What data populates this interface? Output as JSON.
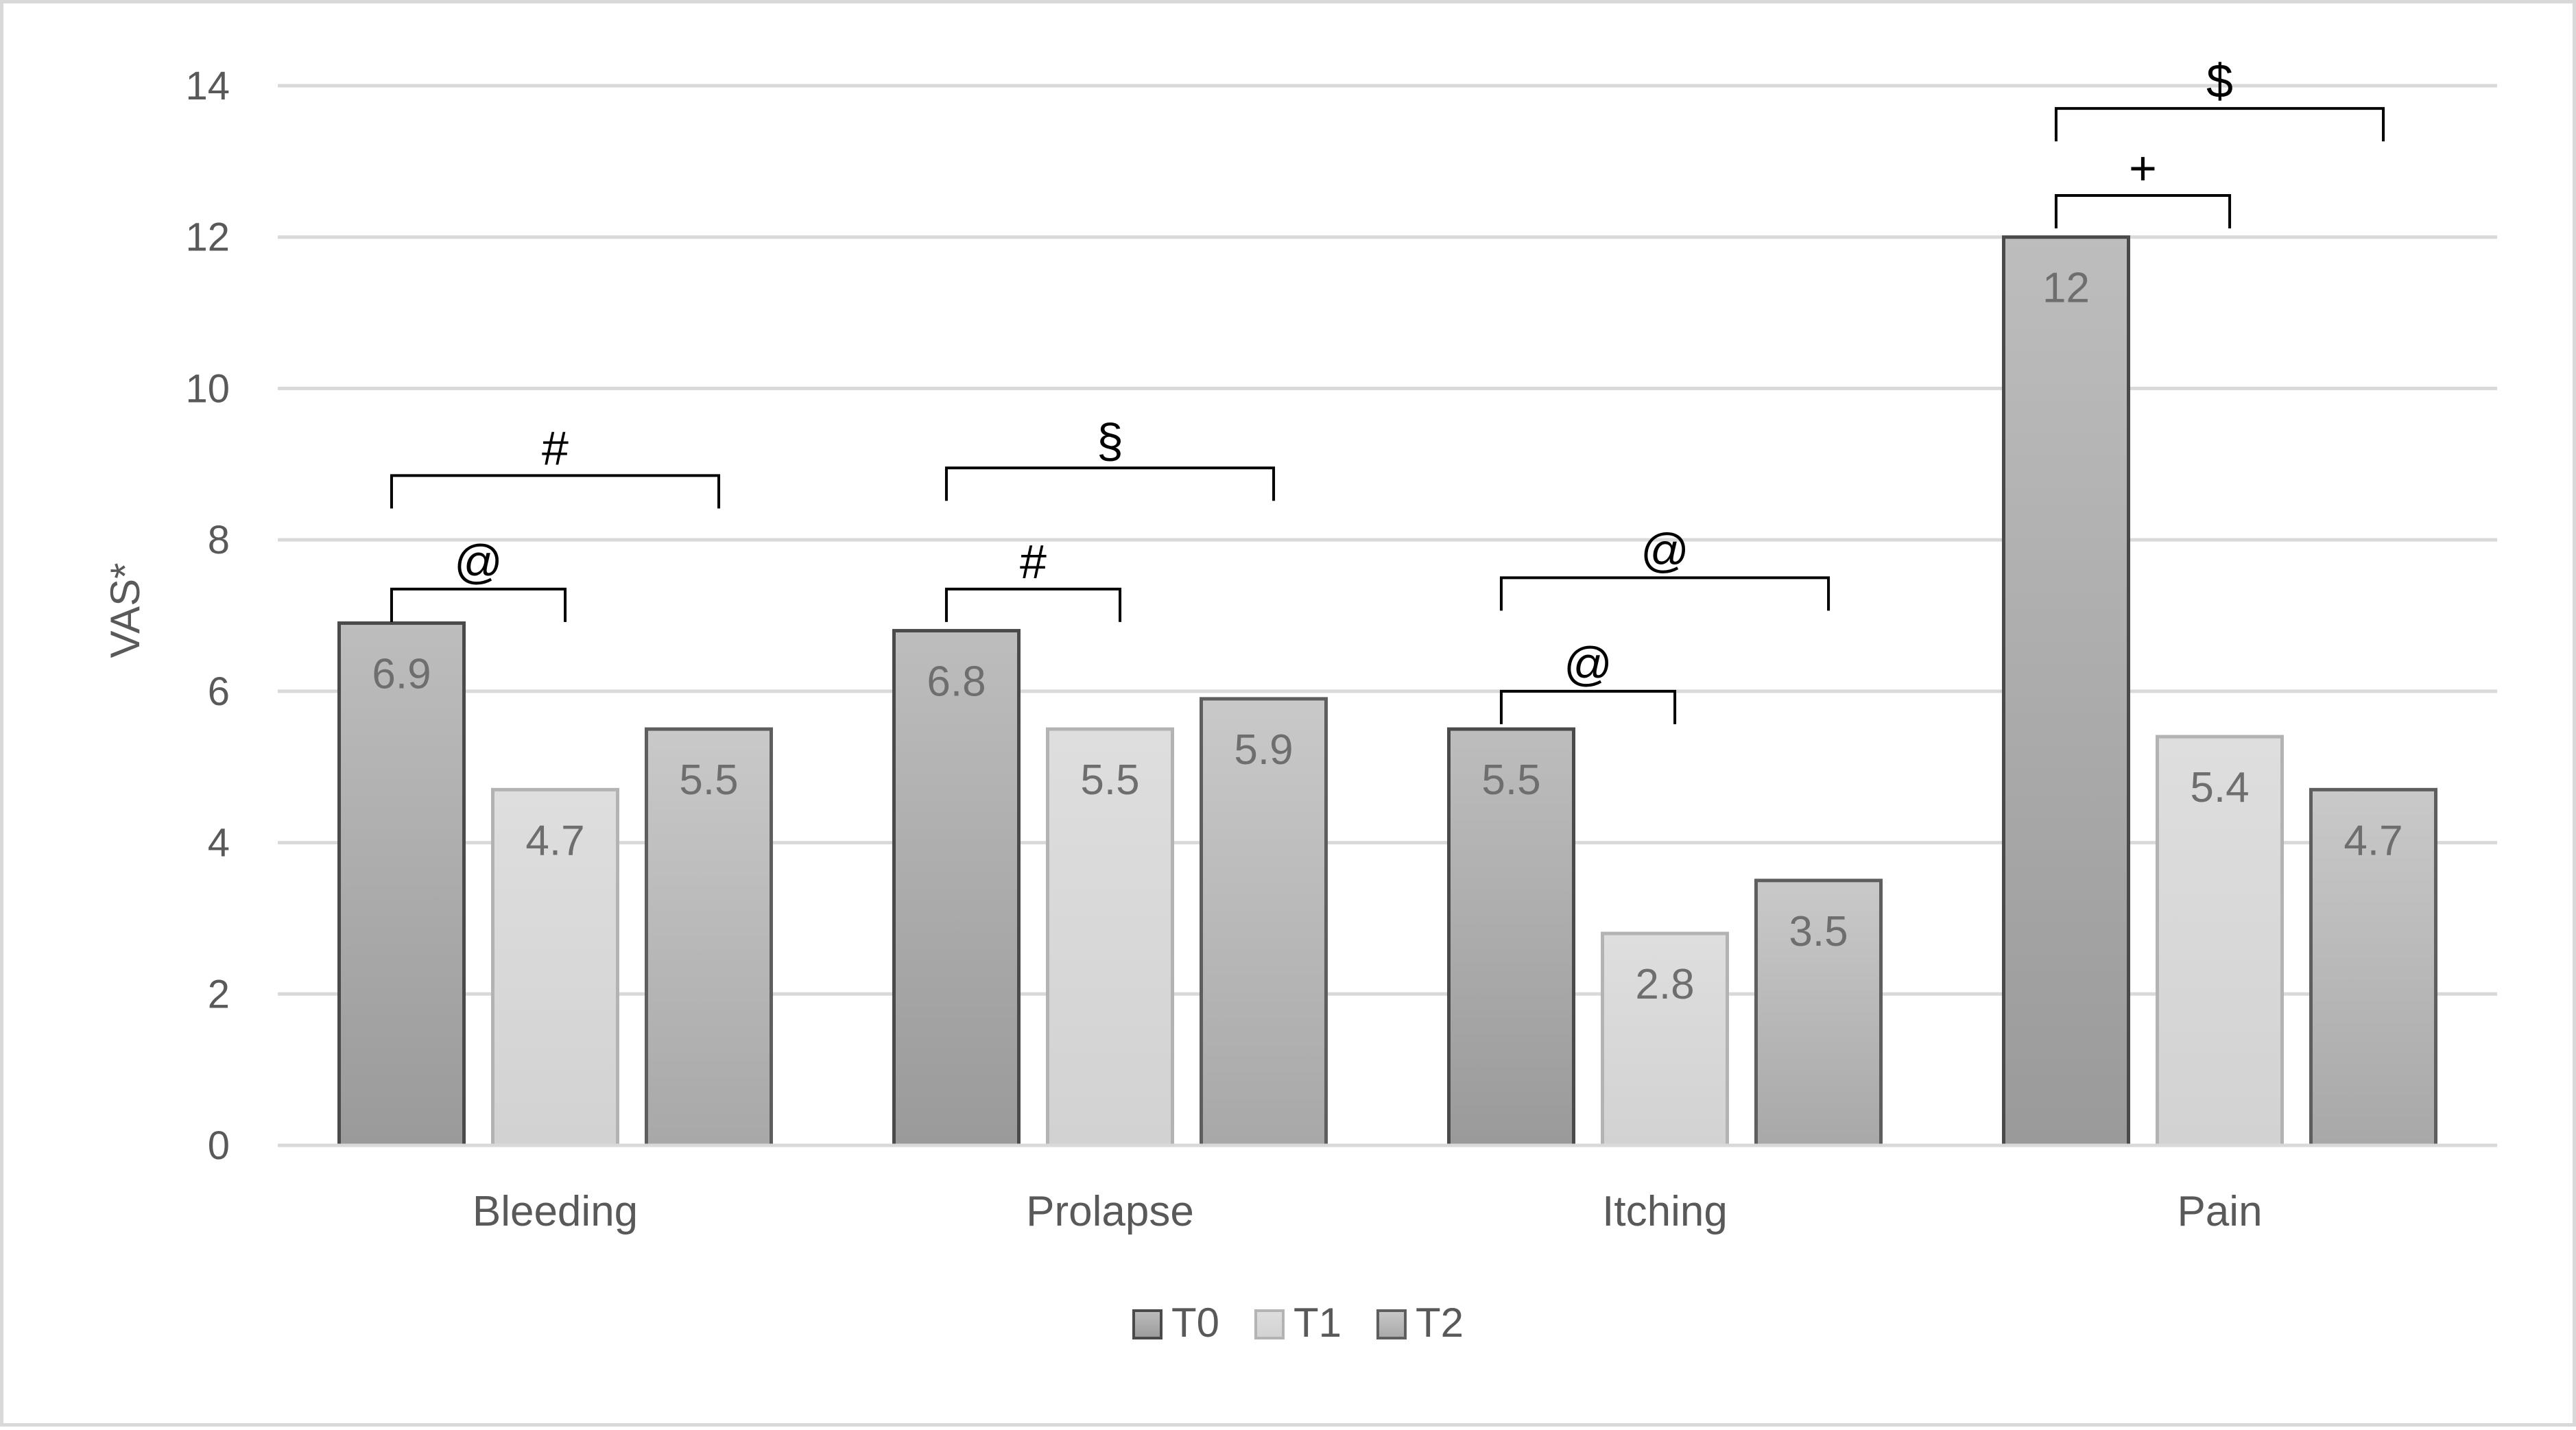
{
  "chart_data": {
    "type": "bar",
    "categories": [
      "Bleeding",
      "Prolapse",
      "Itching",
      "Pain"
    ],
    "series": [
      {
        "name": "T0",
        "values": [
          6.9,
          6.8,
          5.5,
          12
        ],
        "color": "#9a9a9a",
        "color_light": "#bdbdbd",
        "stroke": "#4a4a4a"
      },
      {
        "name": "T1",
        "values": [
          4.7,
          5.5,
          2.8,
          5.4
        ],
        "color": "#d2d2d2",
        "color_light": "#dedede",
        "stroke": "#b3b3b3"
      },
      {
        "name": "T2",
        "values": [
          5.5,
          5.9,
          3.5,
          4.7
        ],
        "color": "#a8a8a8",
        "color_light": "#c9c9c9",
        "stroke": "#5e5e5e"
      }
    ],
    "data_labels": [
      [
        "6.9",
        "6.8",
        "5.5",
        "12"
      ],
      [
        "4.7",
        "5.5",
        "2.8",
        "5.4"
      ],
      [
        "5.5",
        "5.9",
        "3.5",
        "4.7"
      ]
    ],
    "ylabel": "VAS*",
    "ylim": [
      0,
      14
    ],
    "yticks": [
      0,
      2,
      4,
      6,
      8,
      10,
      12,
      14
    ],
    "grid": true,
    "legend": "bottom",
    "significance": [
      {
        "category": 0,
        "from_series": 0,
        "to_series": 1,
        "symbol": "@",
        "level": 7.35
      },
      {
        "category": 0,
        "from_series": 0,
        "to_series": 2,
        "symbol": "#",
        "level": 8.85
      },
      {
        "category": 1,
        "from_series": 0,
        "to_series": 1,
        "symbol": "#",
        "level": 7.35
      },
      {
        "category": 1,
        "from_series": 0,
        "to_series": 2,
        "symbol": "§",
        "level": 8.95
      },
      {
        "category": 2,
        "from_series": 0,
        "to_series": 1,
        "symbol": "@",
        "level": 6.0
      },
      {
        "category": 2,
        "from_series": 0,
        "to_series": 2,
        "symbol": "@",
        "level": 7.5
      },
      {
        "category": 3,
        "from_series": 0,
        "to_series": 1,
        "symbol": "+",
        "level": 12.55
      },
      {
        "category": 3,
        "from_series": 0,
        "to_series": 2,
        "symbol": "$",
        "level": 13.7
      }
    ]
  }
}
